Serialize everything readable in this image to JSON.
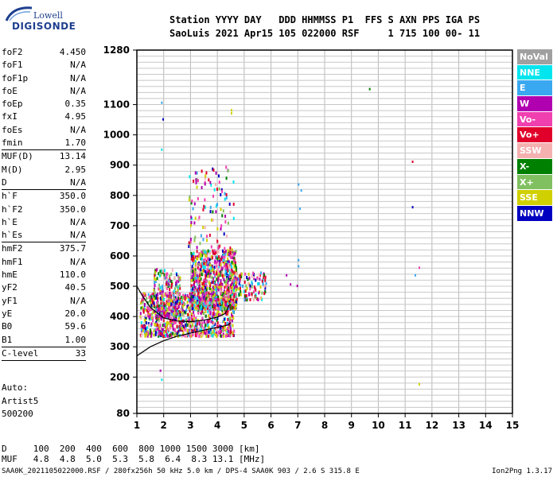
{
  "logo": {
    "line1": "Lowell",
    "line2": "DIGISONDE"
  },
  "header": {
    "row1": "Station YYYY DAY   DDD HHMMSS P1  FFS S AXN PPS IGA PS",
    "row2": "SaoLuis 2021 Apr15 105 022000 RSF     1 715 100 00- 11"
  },
  "params": {
    "groups": [
      [
        {
          "label": "foF2",
          "value": "4.450"
        },
        {
          "label": "foF1",
          "value": "N/A"
        },
        {
          "label": "foF1p",
          "value": "N/A"
        },
        {
          "label": "foE",
          "value": "N/A"
        },
        {
          "label": "foEp",
          "value": "0.35"
        },
        {
          "label": "fxI",
          "value": "4.95"
        },
        {
          "label": "foEs",
          "value": "N/A"
        },
        {
          "label": "fmin",
          "value": "1.70"
        }
      ],
      [
        {
          "label": "MUF(D)",
          "value": "13.14"
        },
        {
          "label": "M(D)",
          "value": "2.95"
        },
        {
          "label": "D",
          "value": "N/A"
        }
      ],
      [
        {
          "label": "h`F",
          "value": "350.0"
        },
        {
          "label": "h`F2",
          "value": "350.0"
        },
        {
          "label": "h`E",
          "value": "N/A"
        },
        {
          "label": "h`Es",
          "value": "N/A"
        }
      ],
      [
        {
          "label": "hmF2",
          "value": "375.7"
        },
        {
          "label": "hmF1",
          "value": "N/A"
        },
        {
          "label": "hmE",
          "value": "110.0"
        },
        {
          "label": "yF2",
          "value": "40.5"
        },
        {
          "label": "yF1",
          "value": "N/A"
        },
        {
          "label": "yE",
          "value": "20.0"
        },
        {
          "label": "B0",
          "value": "59.6"
        },
        {
          "label": "B1",
          "value": "1.00"
        }
      ],
      [
        {
          "label": "C-level",
          "value": "33"
        }
      ]
    ],
    "auto": [
      "Auto:",
      "Artist5",
      "500200"
    ]
  },
  "legend": [
    {
      "label": "NoVal",
      "color": "#a0a0a0"
    },
    {
      "label": "NNE",
      "color": "#00e5ee"
    },
    {
      "label": "E",
      "color": "#3aa8f0"
    },
    {
      "label": "W",
      "color": "#b000b0"
    },
    {
      "label": "Vo-",
      "color": "#f040b0"
    },
    {
      "label": "Vo+",
      "color": "#e0002a"
    },
    {
      "label": "SSW",
      "color": "#f5b0b0"
    },
    {
      "label": "X-",
      "color": "#008000"
    },
    {
      "label": "X+",
      "color": "#80c060"
    },
    {
      "label": "SSE",
      "color": "#d0d000"
    },
    {
      "label": "NNW",
      "color": "#0000c0"
    }
  ],
  "footer": {
    "row1": "D     100  200  400  600  800 1000 1500 3000 [km]",
    "row2": "MUF   4.8  4.8  5.0  5.3  5.8  6.4  8.3 13.1 [MHz]",
    "info": "SAA0K_2021105022000.RSF / 280fx256h 50 kHz 5.0 km / DPS-4 SAA0K 903 / 2.6 S 315.8 E",
    "version": "Ion2Png 1.3.17"
  },
  "chart_data": {
    "type": "scatter",
    "xlim": [
      1,
      15
    ],
    "ylim": [
      80,
      1280
    ],
    "x_ticks": [
      1,
      2,
      3,
      4,
      5,
      6,
      7,
      8,
      9,
      10,
      11,
      12,
      13,
      14,
      15
    ],
    "y_ticks": [
      80,
      200,
      300,
      400,
      500,
      600,
      700,
      800,
      900,
      1000,
      1100,
      1280
    ],
    "grid": true,
    "echo_clusters": [
      {
        "name": "F2 trace main",
        "x_range": [
          1.1,
          4.6
        ],
        "y_range": [
          340,
          480
        ],
        "density": "high"
      },
      {
        "name": "F2 trace upper",
        "x_range": [
          3.0,
          4.7
        ],
        "y_range": [
          430,
          620
        ],
        "density": "high"
      },
      {
        "name": "oblique upper",
        "x_range": [
          2.9,
          4.6
        ],
        "y_range": [
          620,
          900
        ],
        "density": "low"
      },
      {
        "name": "spread F low",
        "x_range": [
          1.6,
          2.6
        ],
        "y_range": [
          400,
          560
        ],
        "density": "medium"
      },
      {
        "name": "extension",
        "x_range": [
          4.6,
          5.8
        ],
        "y_range": [
          460,
          550
        ],
        "density": "low"
      }
    ],
    "scattered_points": [
      {
        "x": 1.9,
        "y": 1110,
        "dir": "E"
      },
      {
        "x": 1.95,
        "y": 1055,
        "dir": "NNW"
      },
      {
        "x": 1.9,
        "y": 955,
        "dir": "NNE"
      },
      {
        "x": 1.85,
        "y": 225,
        "dir": "W"
      },
      {
        "x": 1.9,
        "y": 195,
        "dir": "NNE"
      },
      {
        "x": 4.5,
        "y": 1085,
        "dir": "SSE"
      },
      {
        "x": 4.5,
        "y": 1075,
        "dir": "SSE"
      },
      {
        "x": 9.65,
        "y": 1155,
        "dir": "X-"
      },
      {
        "x": 11.25,
        "y": 915,
        "dir": "Vo+"
      },
      {
        "x": 11.25,
        "y": 765,
        "dir": "NNW"
      },
      {
        "x": 11.5,
        "y": 565,
        "dir": "Vo-"
      },
      {
        "x": 11.35,
        "y": 540,
        "dir": "E"
      },
      {
        "x": 11.5,
        "y": 180,
        "dir": "SSE"
      },
      {
        "x": 7.0,
        "y": 840,
        "dir": "E"
      },
      {
        "x": 7.1,
        "y": 820,
        "dir": "E"
      },
      {
        "x": 7.05,
        "y": 760,
        "dir": "E"
      },
      {
        "x": 7.0,
        "y": 590,
        "dir": "E"
      },
      {
        "x": 7.0,
        "y": 570,
        "dir": "E"
      },
      {
        "x": 6.95,
        "y": 505,
        "dir": "W"
      },
      {
        "x": 6.7,
        "y": 510,
        "dir": "W"
      },
      {
        "x": 6.55,
        "y": 540,
        "dir": "W"
      }
    ],
    "profile_line": {
      "name": "electron density profile",
      "points": [
        [
          1.0,
          270
        ],
        [
          1.5,
          300
        ],
        [
          2.0,
          320
        ],
        [
          2.5,
          335
        ],
        [
          3.0,
          345
        ],
        [
          3.5,
          355
        ],
        [
          4.0,
          364
        ],
        [
          4.4,
          372
        ],
        [
          4.5,
          380
        ]
      ]
    },
    "trace_line": {
      "name": "F2 trace",
      "points": [
        [
          1.0,
          500
        ],
        [
          1.2,
          470
        ],
        [
          1.5,
          430
        ],
        [
          2.0,
          395
        ],
        [
          2.5,
          385
        ],
        [
          3.0,
          383
        ],
        [
          3.5,
          388
        ],
        [
          4.0,
          398
        ],
        [
          4.3,
          410
        ],
        [
          4.45,
          440
        ]
      ]
    }
  }
}
